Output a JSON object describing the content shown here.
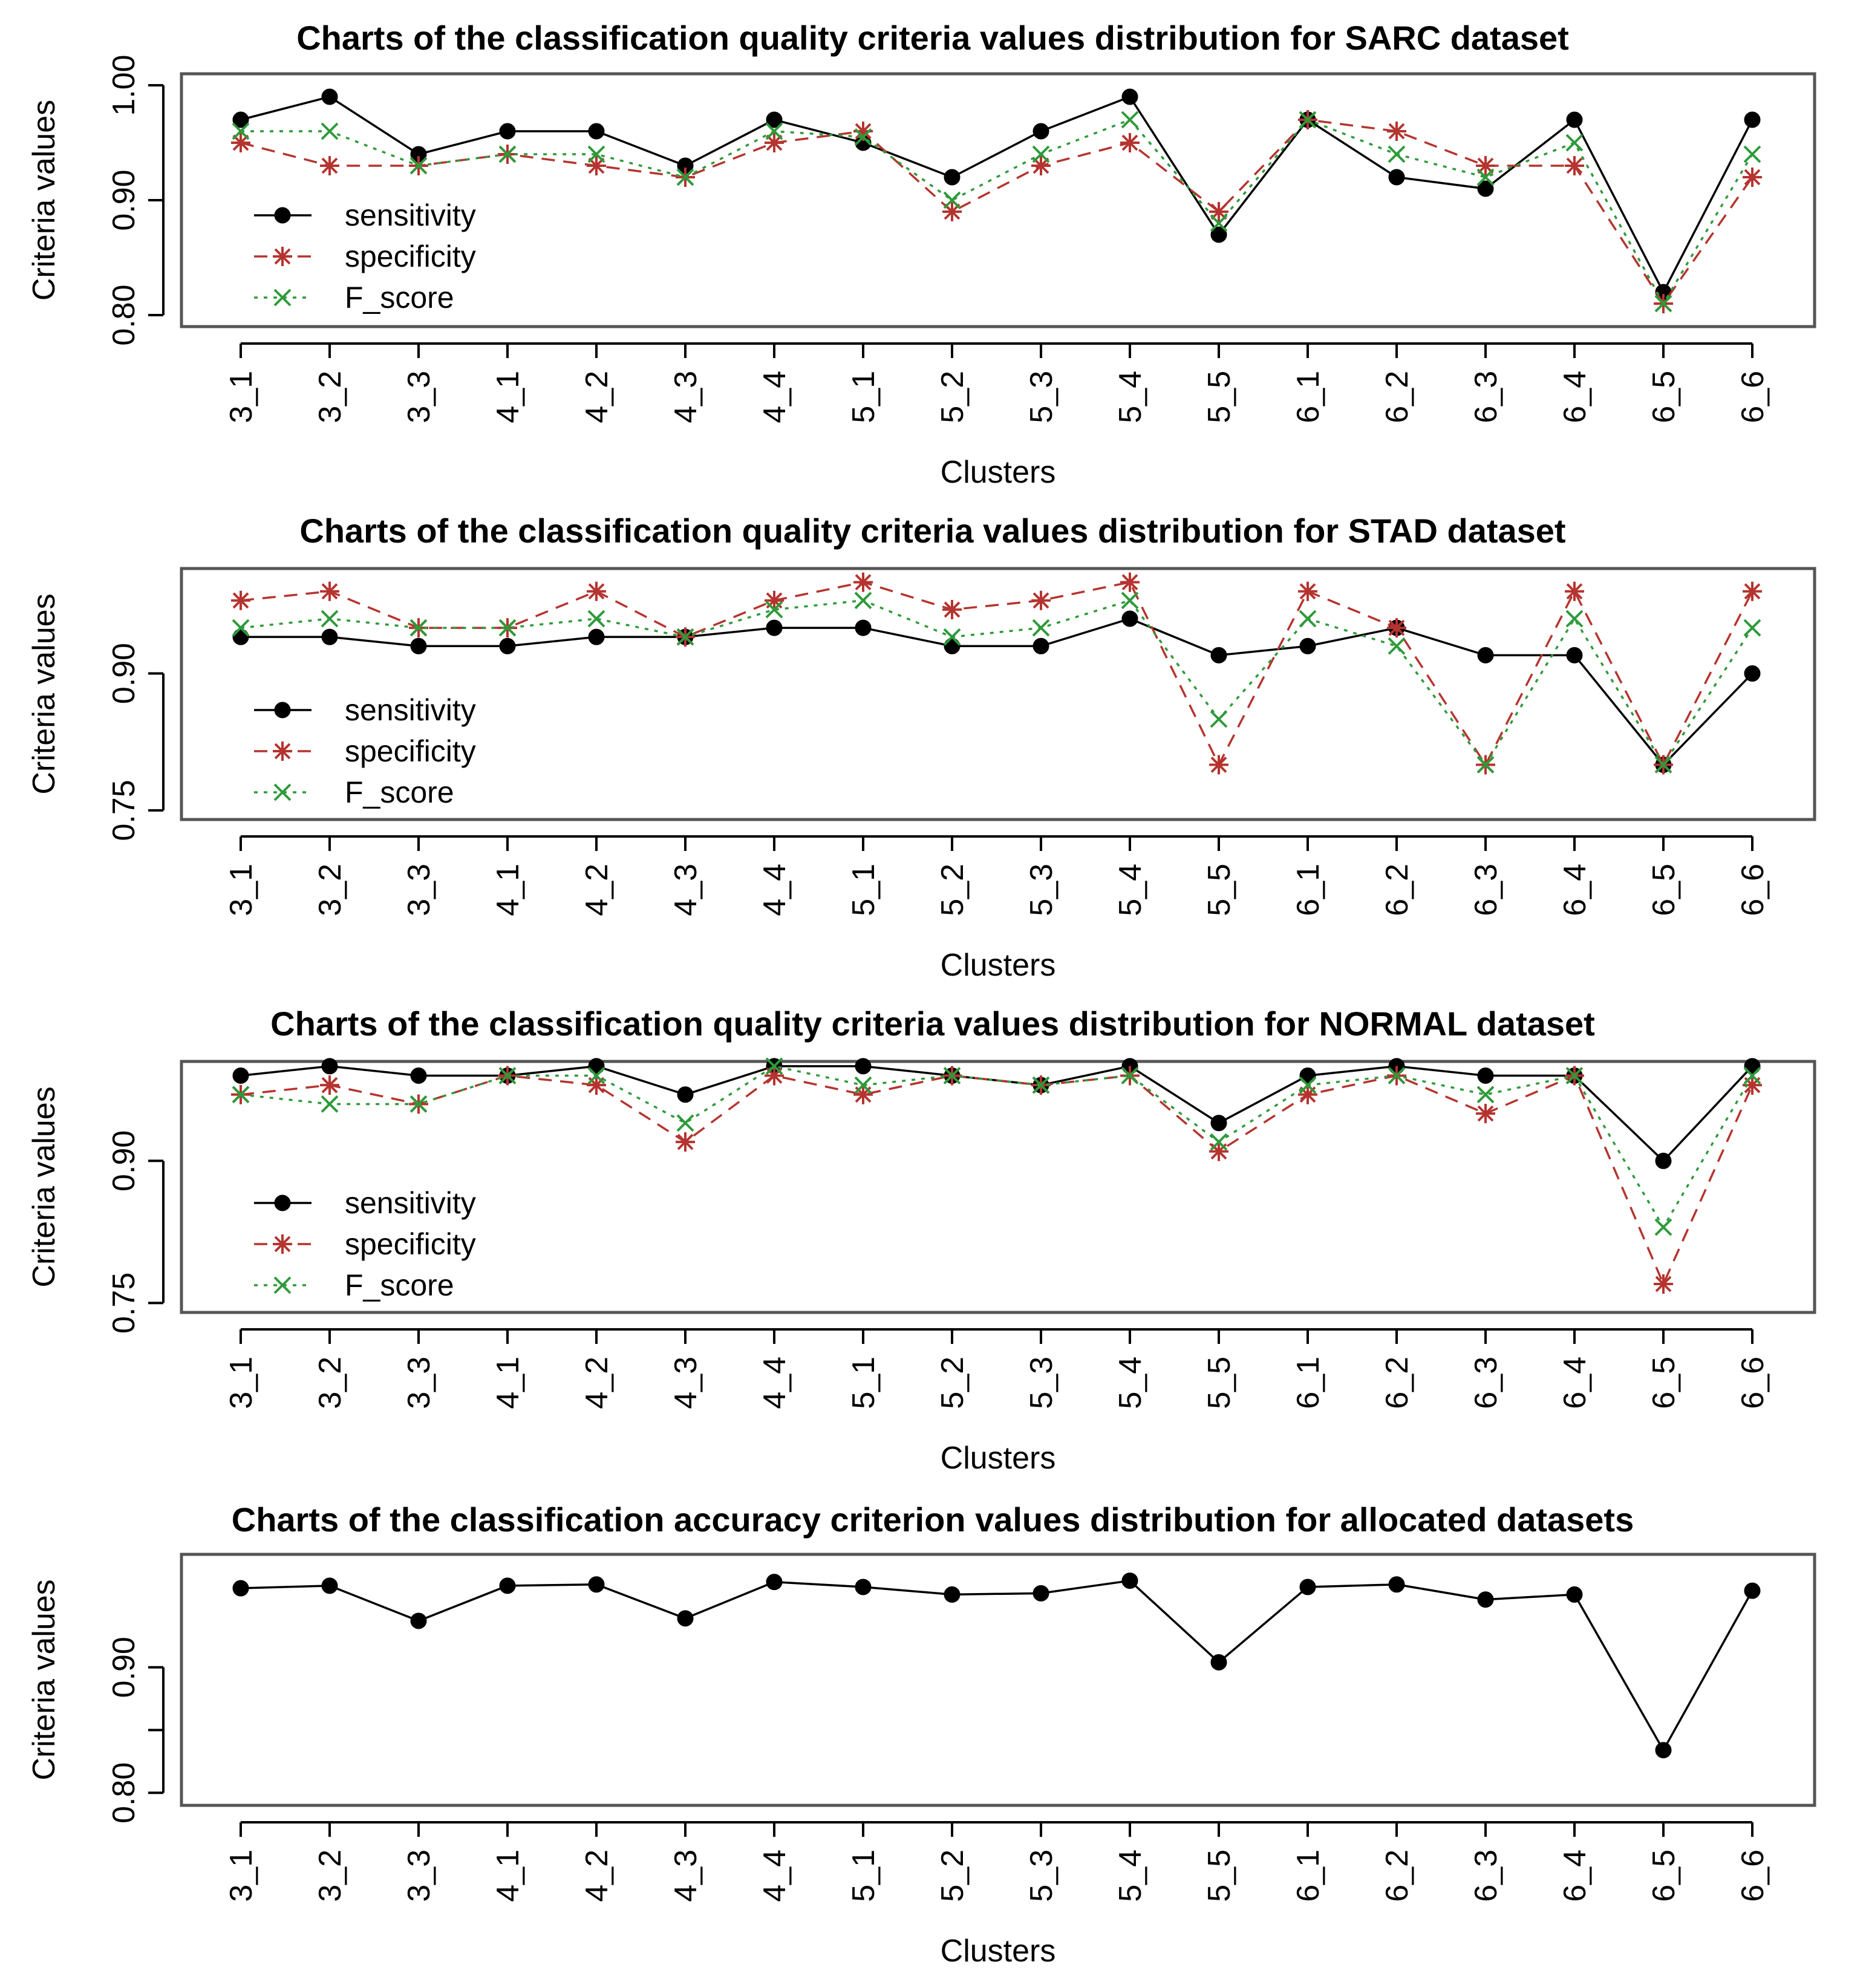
{
  "colors": {
    "sensitivity": "#000000",
    "specificity": "#b5342f",
    "f_score": "#2e9a3a",
    "frame": "#555555"
  },
  "chart_data": [
    {
      "type": "line",
      "title": "Charts of the classification quality criteria values distribution for SARC dataset",
      "xlabel": "Clusters",
      "ylabel": "Criteria values",
      "yticks": [
        0.8,
        0.9,
        1.0
      ],
      "ytick_labels": [
        "0.80",
        "0.90",
        "1.00"
      ],
      "ylim": [
        0.79,
        1.01
      ],
      "legend": "left",
      "categories": [
        "3_1",
        "3_2",
        "3_3",
        "4_1",
        "4_2",
        "4_3",
        "4_4",
        "5_1",
        "5_2",
        "5_3",
        "5_4",
        "5_5",
        "6_1",
        "6_2",
        "6_3",
        "6_4",
        "6_5",
        "6_6"
      ],
      "series": [
        {
          "name": "sensitivity",
          "marker": "dot",
          "dash": "solid",
          "color": "#000000",
          "values": [
            0.97,
            0.99,
            0.94,
            0.96,
            0.96,
            0.93,
            0.97,
            0.95,
            0.92,
            0.96,
            0.99,
            0.87,
            0.97,
            0.92,
            0.91,
            0.97,
            0.82,
            0.97
          ]
        },
        {
          "name": "specificity",
          "marker": "star",
          "dash": "dashed",
          "color": "#b5342f",
          "values": [
            0.95,
            0.93,
            0.93,
            0.94,
            0.93,
            0.92,
            0.95,
            0.96,
            0.89,
            0.93,
            0.95,
            0.89,
            0.97,
            0.96,
            0.93,
            0.93,
            0.81,
            0.92
          ]
        },
        {
          "name": "F_score",
          "marker": "cross",
          "dash": "dotted",
          "color": "#2e9a3a",
          "values": [
            0.96,
            0.96,
            0.93,
            0.94,
            0.94,
            0.92,
            0.96,
            0.955,
            0.9,
            0.94,
            0.97,
            0.88,
            0.97,
            0.94,
            0.92,
            0.95,
            0.81,
            0.94
          ]
        }
      ]
    },
    {
      "type": "line",
      "title": "Charts of the classification quality criteria values distribution for STAD dataset",
      "xlabel": "Clusters",
      "ylabel": "Criteria values",
      "yticks": [
        0.75,
        0.9
      ],
      "ytick_labels": [
        "0.75",
        "0.90"
      ],
      "ylim": [
        0.74,
        1.015
      ],
      "legend": "left",
      "categories": [
        "3_1",
        "3_2",
        "3_3",
        "4_1",
        "4_2",
        "4_3",
        "4_4",
        "5_1",
        "5_2",
        "5_3",
        "5_4",
        "5_5",
        "6_1",
        "6_2",
        "6_3",
        "6_4",
        "6_5",
        "6_6"
      ],
      "series": [
        {
          "name": "sensitivity",
          "marker": "dot",
          "dash": "solid",
          "color": "#000000",
          "values": [
            0.94,
            0.94,
            0.93,
            0.93,
            0.94,
            0.94,
            0.95,
            0.95,
            0.93,
            0.93,
            0.96,
            0.92,
            0.93,
            0.95,
            0.92,
            0.92,
            0.8,
            0.9
          ]
        },
        {
          "name": "specificity",
          "marker": "star",
          "dash": "dashed",
          "color": "#b5342f",
          "values": [
            0.98,
            0.99,
            0.95,
            0.95,
            0.99,
            0.94,
            0.98,
            1.0,
            0.97,
            0.98,
            1.0,
            0.8,
            0.99,
            0.95,
            0.8,
            0.99,
            0.8,
            0.99
          ]
        },
        {
          "name": "F_score",
          "marker": "cross",
          "dash": "dotted",
          "color": "#2e9a3a",
          "values": [
            0.95,
            0.96,
            0.95,
            0.95,
            0.96,
            0.94,
            0.97,
            0.98,
            0.94,
            0.95,
            0.98,
            0.85,
            0.96,
            0.93,
            0.8,
            0.96,
            0.8,
            0.95
          ]
        }
      ]
    },
    {
      "type": "line",
      "title": "Charts of the classification quality criteria values distribution for NORMAL dataset",
      "xlabel": "Clusters",
      "ylabel": "Criteria values",
      "yticks": [
        0.75,
        0.9
      ],
      "ytick_labels": [
        "0.75",
        "0.90"
      ],
      "ylim": [
        0.74,
        1.005
      ],
      "legend": "left",
      "categories": [
        "3_1",
        "3_2",
        "3_3",
        "4_1",
        "4_2",
        "4_3",
        "4_4",
        "5_1",
        "5_2",
        "5_3",
        "5_4",
        "5_5",
        "6_1",
        "6_2",
        "6_3",
        "6_4",
        "6_5",
        "6_6"
      ],
      "series": [
        {
          "name": "sensitivity",
          "marker": "dot",
          "dash": "solid",
          "color": "#000000",
          "values": [
            0.99,
            1.0,
            0.99,
            0.99,
            1.0,
            0.97,
            1.0,
            1.0,
            0.99,
            0.98,
            1.0,
            0.94,
            0.99,
            1.0,
            0.99,
            0.99,
            0.9,
            1.0
          ]
        },
        {
          "name": "specificity",
          "marker": "star",
          "dash": "dashed",
          "color": "#b5342f",
          "values": [
            0.97,
            0.98,
            0.96,
            0.99,
            0.98,
            0.92,
            0.99,
            0.97,
            0.99,
            0.98,
            0.99,
            0.91,
            0.97,
            0.99,
            0.95,
            0.99,
            0.77,
            0.98
          ]
        },
        {
          "name": "F_score",
          "marker": "cross",
          "dash": "dotted",
          "color": "#2e9a3a",
          "values": [
            0.97,
            0.96,
            0.96,
            0.99,
            0.99,
            0.94,
            1.0,
            0.98,
            0.99,
            0.98,
            0.99,
            0.92,
            0.98,
            0.99,
            0.97,
            0.99,
            0.83,
            0.99
          ]
        }
      ]
    },
    {
      "type": "line",
      "title": "Charts of the classification accuracy criterion values distribution for allocated datasets",
      "xlabel": "Clusters",
      "ylabel": "Criteria values",
      "yticks": [
        0.8,
        0.85,
        0.9
      ],
      "ytick_labels": [
        "0.80",
        "",
        "0.90"
      ],
      "ylim": [
        0.79,
        0.99
      ],
      "legend": "none",
      "categories": [
        "3_1",
        "3_2",
        "3_3",
        "4_1",
        "4_2",
        "4_3",
        "4_4",
        "5_1",
        "5_2",
        "5_3",
        "5_4",
        "5_5",
        "6_1",
        "6_2",
        "6_3",
        "6_4",
        "6_5",
        "6_6"
      ],
      "series": [
        {
          "name": "accuracy",
          "marker": "dot",
          "dash": "solid",
          "color": "#000000",
          "values": [
            0.963,
            0.965,
            0.937,
            0.965,
            0.966,
            0.939,
            0.968,
            0.964,
            0.958,
            0.959,
            0.969,
            0.904,
            0.964,
            0.966,
            0.954,
            0.958,
            0.834,
            0.961
          ]
        }
      ]
    }
  ]
}
